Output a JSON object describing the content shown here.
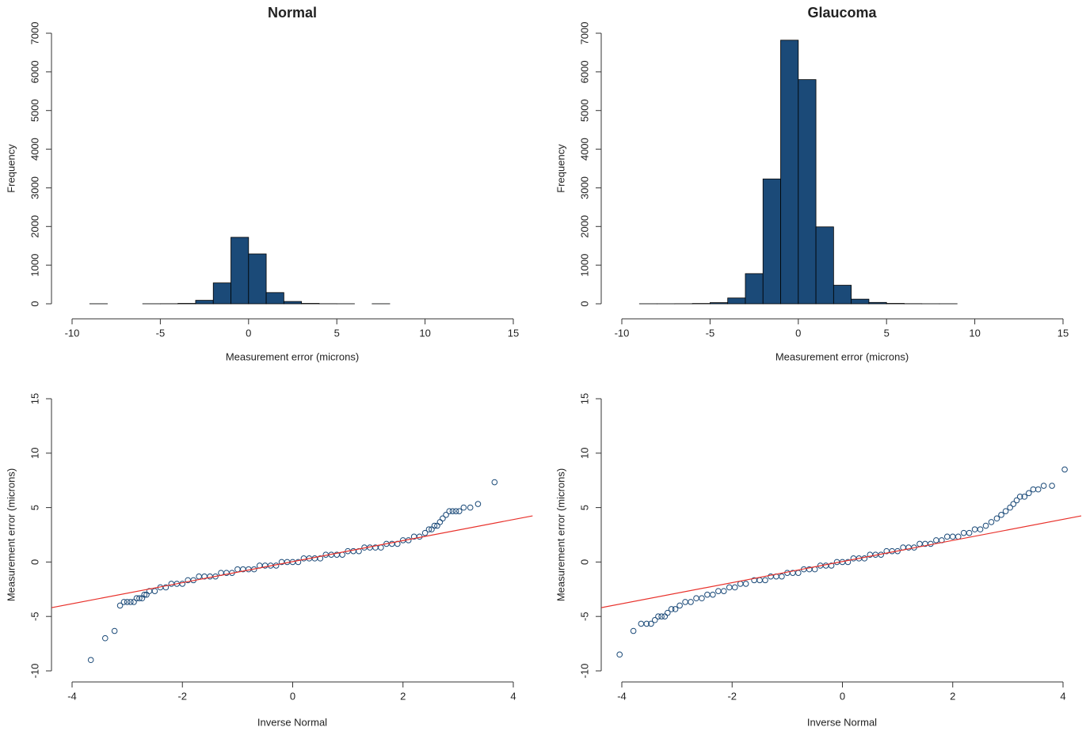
{
  "chart_data": [
    {
      "type": "histogram",
      "title": "Normal",
      "xlabel": "Measurement error (microns)",
      "ylabel": "Frequency",
      "bins": [
        -9,
        -8,
        -7,
        -6,
        -5,
        -4,
        -3,
        -2,
        -1,
        0,
        1,
        2,
        3,
        4,
        5,
        6,
        7,
        8
      ],
      "counts": [
        1,
        0,
        0,
        1,
        2,
        10,
        90,
        540,
        1720,
        1290,
        290,
        60,
        10,
        2,
        1,
        0,
        1
      ],
      "color": "#1b4a78",
      "xlim": [
        -10,
        15
      ],
      "ylim": [
        0,
        7000
      ],
      "xticks": [
        -10,
        -5,
        0,
        5,
        10,
        15
      ],
      "yticks": [
        0,
        1000,
        2000,
        3000,
        4000,
        5000,
        6000,
        7000
      ]
    },
    {
      "type": "histogram",
      "title": "Glaucoma",
      "xlabel": "Measurement error (microns)",
      "ylabel": "Frequency",
      "bins": [
        -9,
        -8,
        -7,
        -6,
        -5,
        -4,
        -3,
        -2,
        -1,
        0,
        1,
        2,
        3,
        4,
        5,
        6,
        7,
        8,
        9
      ],
      "counts": [
        1,
        1,
        2,
        8,
        30,
        150,
        780,
        3230,
        6820,
        5800,
        1990,
        480,
        120,
        35,
        10,
        3,
        1,
        1
      ],
      "color": "#1b4a78",
      "xlim": [
        -10,
        15
      ],
      "ylim": [
        0,
        7000
      ],
      "xticks": [
        -10,
        -5,
        0,
        5,
        10,
        15
      ],
      "yticks": [
        0,
        1000,
        2000,
        3000,
        4000,
        5000,
        6000,
        7000
      ]
    },
    {
      "type": "scatter",
      "xlabel": "Inverse Normal",
      "ylabel": "Measurement error (microns)",
      "x": [
        -3.66,
        -3.4,
        -3.23,
        -3.13,
        -3.06,
        -3.0,
        -2.94,
        -2.88,
        -2.83,
        -2.78,
        -2.73,
        -2.69,
        -2.65,
        -2.6,
        -2.5,
        -2.4,
        -2.3,
        -2.2,
        -2.1,
        -2.0,
        -1.9,
        -1.8,
        -1.7,
        -1.6,
        -1.5,
        -1.4,
        -1.3,
        -1.2,
        -1.1,
        -1.0,
        -0.9,
        -0.8,
        -0.7,
        -0.6,
        -0.5,
        -0.4,
        -0.3,
        -0.2,
        -0.1,
        0.0,
        0.1,
        0.2,
        0.3,
        0.4,
        0.5,
        0.6,
        0.7,
        0.8,
        0.9,
        1.0,
        1.1,
        1.2,
        1.3,
        1.4,
        1.5,
        1.6,
        1.7,
        1.8,
        1.9,
        2.0,
        2.1,
        2.2,
        2.3,
        2.4,
        2.47,
        2.52,
        2.57,
        2.62,
        2.67,
        2.72,
        2.78,
        2.84,
        2.9,
        2.96,
        3.02,
        3.1,
        3.22,
        3.36,
        3.66
      ],
      "y": [
        -9.0,
        -7.0,
        -6.33,
        -4.0,
        -3.67,
        -3.67,
        -3.67,
        -3.67,
        -3.33,
        -3.33,
        -3.33,
        -3.0,
        -3.0,
        -2.67,
        -2.67,
        -2.33,
        -2.33,
        -2.0,
        -2.0,
        -2.0,
        -1.67,
        -1.67,
        -1.33,
        -1.33,
        -1.33,
        -1.33,
        -1.0,
        -1.0,
        -1.0,
        -0.67,
        -0.67,
        -0.67,
        -0.67,
        -0.33,
        -0.33,
        -0.33,
        -0.33,
        0,
        0,
        0,
        0,
        0.33,
        0.33,
        0.33,
        0.33,
        0.67,
        0.67,
        0.67,
        0.67,
        1.0,
        1.0,
        1.0,
        1.33,
        1.33,
        1.33,
        1.33,
        1.67,
        1.67,
        1.67,
        2.0,
        2.0,
        2.33,
        2.33,
        2.67,
        3.0,
        3.0,
        3.33,
        3.33,
        3.67,
        4.0,
        4.33,
        4.67,
        4.67,
        4.67,
        4.67,
        5.0,
        5.0,
        5.33,
        7.33
      ],
      "color": "#1b4a78",
      "reference_line": {
        "x": [
          -4.37,
          4.35
        ],
        "y": [
          -4.19,
          4.24
        ],
        "color": "#e8302a"
      },
      "xlim": [
        -4,
        4
      ],
      "ylim": [
        -10,
        15
      ],
      "xticks": [
        -4,
        -2,
        0,
        2,
        4
      ],
      "yticks": [
        -10,
        -5,
        0,
        5,
        10,
        15
      ]
    },
    {
      "type": "scatter",
      "xlabel": "Inverse Normal",
      "ylabel": "Measurement error (microns)",
      "x": [
        -4.04,
        -3.79,
        -3.65,
        -3.55,
        -3.47,
        -3.4,
        -3.34,
        -3.28,
        -3.22,
        -3.17,
        -3.1,
        -3.03,
        -2.95,
        -2.85,
        -2.75,
        -2.65,
        -2.55,
        -2.45,
        -2.35,
        -2.25,
        -2.15,
        -2.05,
        -1.95,
        -1.85,
        -1.75,
        -1.6,
        -1.5,
        -1.4,
        -1.3,
        -1.2,
        -1.1,
        -1.0,
        -0.9,
        -0.8,
        -0.7,
        -0.6,
        -0.5,
        -0.4,
        -0.3,
        -0.2,
        -0.1,
        0.0,
        0.1,
        0.2,
        0.3,
        0.4,
        0.5,
        0.6,
        0.7,
        0.8,
        0.9,
        1.0,
        1.1,
        1.2,
        1.3,
        1.4,
        1.5,
        1.6,
        1.7,
        1.8,
        1.9,
        2.0,
        2.1,
        2.2,
        2.3,
        2.4,
        2.5,
        2.6,
        2.7,
        2.8,
        2.88,
        2.96,
        3.04,
        3.1,
        3.16,
        3.22,
        3.3,
        3.38,
        3.46,
        3.55,
        3.65,
        3.8,
        4.03
      ],
      "y": [
        -8.5,
        -6.33,
        -5.67,
        -5.67,
        -5.67,
        -5.33,
        -5.0,
        -5.0,
        -5.0,
        -4.67,
        -4.33,
        -4.33,
        -4.0,
        -3.67,
        -3.67,
        -3.33,
        -3.33,
        -3.0,
        -3.0,
        -2.67,
        -2.67,
        -2.33,
        -2.33,
        -2.0,
        -2.0,
        -1.67,
        -1.67,
        -1.67,
        -1.33,
        -1.33,
        -1.33,
        -1.0,
        -1.0,
        -1.0,
        -0.67,
        -0.67,
        -0.67,
        -0.33,
        -0.33,
        -0.33,
        0,
        0,
        0,
        0.33,
        0.33,
        0.33,
        0.67,
        0.67,
        0.67,
        1.0,
        1.0,
        1.0,
        1.33,
        1.33,
        1.33,
        1.67,
        1.67,
        1.67,
        2.0,
        2.0,
        2.33,
        2.33,
        2.33,
        2.67,
        2.67,
        3.0,
        3.0,
        3.33,
        3.67,
        4.0,
        4.33,
        4.67,
        5.0,
        5.33,
        5.67,
        6.0,
        6.0,
        6.33,
        6.67,
        6.67,
        7.0,
        7.0,
        8.5
      ],
      "color": "#1b4a78",
      "reference_line": {
        "x": [
          -4.37,
          4.33
        ],
        "y": [
          -4.19,
          4.24
        ],
        "color": "#e8302a"
      },
      "xlim": [
        -4,
        4
      ],
      "ylim": [
        -10,
        15
      ],
      "xticks": [
        -4,
        -2,
        0,
        2,
        4
      ],
      "yticks": [
        -10,
        -5,
        0,
        5,
        10,
        15
      ]
    }
  ]
}
